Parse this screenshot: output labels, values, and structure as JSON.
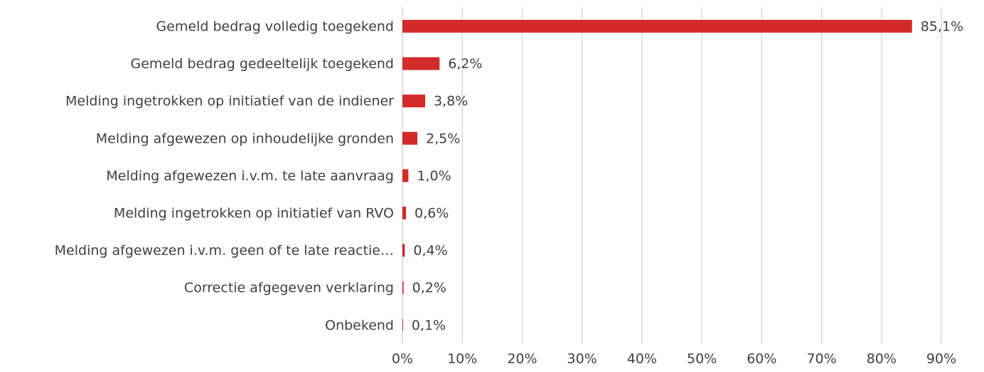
{
  "chart_data": {
    "type": "bar",
    "orientation": "horizontal",
    "categories": [
      "Gemeld bedrag volledig toegekend",
      "Gemeld bedrag gedeeltelijk toegekend",
      "Melding ingetrokken op initiatief van de indiener",
      "Melding afgewezen op inhoudelijke gronden",
      "Melding afgewezen i.v.m. te late aanvraag",
      "Melding ingetrokken op initiatief van RVO",
      "Melding afgewezen i.v.m. geen of te late reactie…",
      "Correctie afgegeven verklaring",
      "Onbekend"
    ],
    "values": [
      85.1,
      6.2,
      3.8,
      2.5,
      1.0,
      0.6,
      0.4,
      0.2,
      0.1
    ],
    "value_labels": [
      "85,1%",
      "6,2%",
      "3,8%",
      "2,5%",
      "1,0%",
      "0,6%",
      "0,4%",
      "0,2%",
      "0,1%"
    ],
    "color": "#d42a2a",
    "xlim": [
      0,
      90
    ],
    "xticks": [
      {
        "value": 0,
        "label": "0%"
      },
      {
        "value": 10,
        "label": "10%"
      },
      {
        "value": 20,
        "label": "20%"
      },
      {
        "value": 30,
        "label": "30%"
      },
      {
        "value": 40,
        "label": "40%"
      },
      {
        "value": 50,
        "label": "50%"
      },
      {
        "value": 60,
        "label": "60%"
      },
      {
        "value": 70,
        "label": "70%"
      },
      {
        "value": 80,
        "label": "80%"
      },
      {
        "value": 90,
        "label": "90%"
      }
    ],
    "grid": true
  }
}
